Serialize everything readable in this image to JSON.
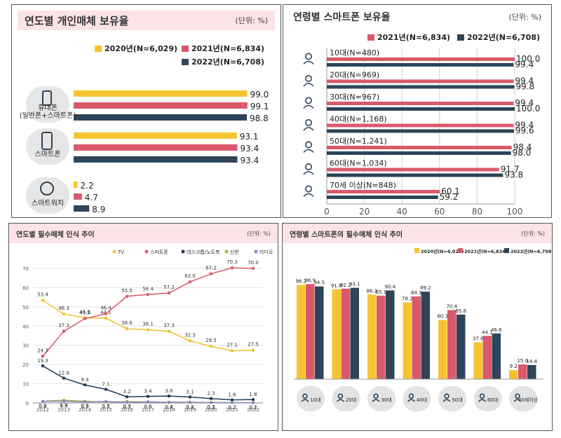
{
  "colors": {
    "y2020": "#f7c431",
    "y2021": "#d9596b",
    "y2022": "#2e4458",
    "tv": "#f2c12e",
    "smartphone": "#d9596b",
    "desktop": "#1f3a55",
    "newspaper": "#9cbf3b",
    "radio": "#8a86c4"
  },
  "chart_data": [
    {
      "type": "bar",
      "title": "연도별 개인매체 보유율",
      "unit": "(단위: %)",
      "legend": [
        "2020년(N=6,029)",
        "2021년(N=6,834)",
        "2022년(N=6,708)"
      ],
      "categories": [
        "휴대폰\n(일반폰+스마트폰)",
        "스마트폰",
        "스마트워치"
      ],
      "icons": [
        "phone-icon",
        "smartphone-icon",
        "smartwatch-icon"
      ],
      "series": [
        {
          "name": "2020년(N=6,029)",
          "values": [
            99.0,
            93.1,
            2.2
          ]
        },
        {
          "name": "2021년(N=6,834)",
          "values": [
            99.1,
            93.4,
            4.7
          ]
        },
        {
          "name": "2022년(N=6,708)",
          "values": [
            98.8,
            93.4,
            8.9
          ]
        }
      ],
      "value_labels": [
        [
          "99.0",
          "99.1",
          "98.8"
        ],
        [
          "93.1",
          "93.4",
          "93.4"
        ],
        [
          "2.2",
          "4.7",
          "8.9"
        ]
      ]
    },
    {
      "type": "bar",
      "title": "연령별 스마트폰 보유율",
      "unit": "(단위: %)",
      "legend": [
        "2021년(N=6,834)",
        "2022년(N=6,708)"
      ],
      "categories": [
        "10대(N=480)",
        "20대(N=969)",
        "30대(N=967)",
        "40대(N=1,168)",
        "50대(N=1,241)",
        "60대(N=1,034)",
        "70세 이상(N=848)"
      ],
      "series": [
        {
          "name": "2021년(N=6,834)",
          "values": [
            100.0,
            99.4,
            99.4,
            99.4,
            98.4,
            91.7,
            60.1
          ]
        },
        {
          "name": "2022년(N=6,708)",
          "values": [
            99.4,
            99.8,
            100.0,
            99.6,
            98.0,
            93.8,
            59.2
          ]
        }
      ],
      "value_labels": [
        [
          "100.0",
          "99.4"
        ],
        [
          "99.4",
          "99.8"
        ],
        [
          "99.4",
          "100.0"
        ],
        [
          "99.4",
          "99.6"
        ],
        [
          "98.4",
          "98.0"
        ],
        [
          "91.7",
          "93.8"
        ],
        [
          "60.1",
          "59.2"
        ]
      ],
      "xlim": [
        0,
        100
      ],
      "xticks": [
        "0",
        "20",
        "40",
        "60",
        "80",
        "100"
      ]
    },
    {
      "type": "line",
      "title": "연도별 필수매체 인식 추이",
      "unit": "(단위: %)",
      "x": [
        "2012",
        "2013",
        "2014",
        "2015",
        "2016",
        "2017",
        "2018",
        "2019",
        "2020",
        "2021",
        "2022"
      ],
      "ylim": [
        0,
        70
      ],
      "yticks": [
        "0",
        "10",
        "20",
        "30",
        "40",
        "50",
        "60",
        "70"
      ],
      "series": [
        {
          "name": "TV",
          "values": [
            53.4,
            46.3,
            44.3,
            44.1,
            38.6,
            38.1,
            37.3,
            32.3,
            29.5,
            27.1,
            27.5
          ],
          "labels": [
            "53.4",
            "46.3",
            "44.3",
            "44.1",
            "38.6",
            "38.1",
            "37.3",
            "32.3",
            "29.5",
            "27.1",
            "27.5"
          ]
        },
        {
          "name": "스마트폰",
          "values": [
            24.3,
            37.3,
            43.9,
            46.4,
            55.5,
            56.4,
            57.2,
            63.0,
            67.2,
            70.3,
            70.0
          ],
          "labels": [
            "24.3",
            "37.3",
            "43.9",
            "46.4",
            "55.5",
            "56.4",
            "57.2",
            "63.0",
            "67.2",
            "70.3",
            "70.0"
          ]
        },
        {
          "name": "데스크톱/노트북",
          "values": [
            19.3,
            12.9,
            9.4,
            7.1,
            3.2,
            3.4,
            3.6,
            3.1,
            2.3,
            1.6,
            1.8
          ],
          "labels": [
            "19.3",
            "12.9",
            "9.4",
            "7.1",
            "3.2",
            "3.4",
            "3.6",
            "3.1",
            "2.3",
            "1.6",
            "1.8"
          ]
        },
        {
          "name": "신문",
          "values": [
            0.9,
            1.4,
            0.9,
            0.5,
            0.7,
            0.5,
            0.4,
            0.2,
            0.3,
            0.2,
            0.2
          ],
          "labels": [
            "0.9",
            "1.4",
            "0.9",
            "0.5",
            "0.7",
            "0.5",
            "0.4",
            "0.2",
            "0.3",
            "0.2",
            "0.2"
          ]
        },
        {
          "name": "라디오",
          "values": [
            0.8,
            0.9,
            0.5,
            0.7,
            0.3,
            0.6,
            0.3,
            0.4,
            0.1,
            0.2,
            0.1
          ],
          "labels": [
            "0.8",
            "0.9",
            "0.5",
            "0.7",
            "0.3",
            "0.6",
            "0.3",
            "0.4",
            "0.1",
            "0.2",
            "0.1"
          ]
        }
      ]
    },
    {
      "type": "bar",
      "title": "연령별 스마트폰의 필수매체 인식 추이",
      "unit": "(단위: %)",
      "legend": [
        "2020년(N=6,029)",
        "2021년(N=6,834)",
        "2022년(N=6,708)"
      ],
      "categories": [
        "10대",
        "20대",
        "30대",
        "40대",
        "50대",
        "60대",
        "70세이상"
      ],
      "series": [
        {
          "name": "2020년(N=6,029)",
          "values": [
            96.2,
            91.6,
            86.2,
            78.2,
            60.3,
            37.6,
            9.2
          ]
        },
        {
          "name": "2021년(N=6,834)",
          "values": [
            96.9,
            92.2,
            85.1,
            84.3,
            70.4,
            44.1,
            15.0
          ]
        },
        {
          "name": "2022년(N=6,708)",
          "values": [
            94.5,
            93.1,
            90.4,
            89.2,
            65.8,
            46.6,
            14.4
          ]
        }
      ],
      "value_labels": [
        [
          "96.2",
          "96.9",
          "94.5"
        ],
        [
          "91.6",
          "92.2",
          "93.1"
        ],
        [
          "86.2",
          "85.1",
          "90.4"
        ],
        [
          "78.2",
          "84.3",
          "89.2"
        ],
        [
          "60.3",
          "70.4",
          "65.8"
        ],
        [
          "37.6",
          "44.1",
          "46.6"
        ],
        [
          "9.2",
          "15.0",
          "14.4"
        ]
      ],
      "ylim": [
        0,
        100
      ]
    }
  ]
}
